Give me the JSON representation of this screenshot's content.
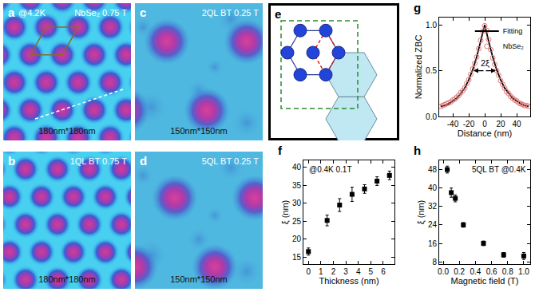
{
  "images": [
    {
      "letter": "a",
      "temperature": "@4.2K",
      "label": "NbSe₂ 0.75 T",
      "size": "180nm*180nm"
    },
    {
      "letter": "b",
      "label": "1QL BT 0.75 T",
      "size": "180nm*180nm"
    },
    {
      "letter": "c",
      "label": "2QL BT 0.25 T",
      "size": "150nm*150nm"
    },
    {
      "letter": "d",
      "label": "5QL BT 0.25 T",
      "size": "150nm*150nm"
    }
  ],
  "schematic": {
    "letter": "e"
  },
  "chart_data": [
    {
      "letter": "f",
      "type": "scatter",
      "annotation": "@0.4K 0.1T",
      "xlabel": "Thickness (nm)",
      "ylabel": "ξ (nm)",
      "x": [
        0,
        1.5,
        2.5,
        3.5,
        4.5,
        5.5,
        6.5
      ],
      "values": [
        16.5,
        25.2,
        29.5,
        32.5,
        34,
        36.2,
        37.8
      ],
      "errors": [
        1,
        1.5,
        1.8,
        2,
        1.2,
        1.2,
        1.2
      ],
      "color": "#000000",
      "marker": "square",
      "xlim": [
        -0.4,
        6.9
      ],
      "ylim": [
        13,
        42
      ],
      "xticks": [
        0,
        1,
        2,
        3,
        4,
        5,
        6
      ],
      "yticks": [
        15,
        20,
        25,
        30,
        35,
        40
      ]
    },
    {
      "letter": "g",
      "type": "line",
      "xlabel": "Distance (nm)",
      "ylabel": "Normalized ZBC",
      "legend": "top right",
      "bracket": {
        "x": [
          -14,
          14
        ],
        "y": 0.5,
        "label": "2ξ"
      },
      "series": [
        {
          "name": "Fitting",
          "type": "line",
          "color": "#000000",
          "x": [
            -55,
            -50,
            -45,
            -40,
            -35,
            -30,
            -25,
            -20,
            -15,
            -10,
            -5,
            0,
            5,
            10,
            15,
            20,
            25,
            30,
            35,
            40,
            45,
            50,
            55
          ],
          "values": [
            0.11,
            0.12,
            0.14,
            0.17,
            0.2,
            0.25,
            0.31,
            0.4,
            0.51,
            0.65,
            0.82,
            1.0,
            0.82,
            0.65,
            0.51,
            0.4,
            0.31,
            0.25,
            0.2,
            0.17,
            0.14,
            0.12,
            0.11
          ]
        },
        {
          "name": "NbSe₂",
          "type": "scatter",
          "marker": "open circle",
          "color": "#e07a7a",
          "x": [
            -55,
            -52.5,
            -50,
            -47.5,
            -45,
            -42.5,
            -40,
            -37.5,
            -35,
            -32.5,
            -30,
            -27.5,
            -25,
            -22.5,
            -20,
            -17.5,
            -15,
            -12.5,
            -10,
            -7.5,
            -5,
            -2.5,
            0,
            2.5,
            5,
            7.5,
            10,
            12.5,
            15,
            17.5,
            20,
            22.5,
            25,
            27.5,
            30,
            32.5,
            35,
            37.5,
            40,
            42.5,
            45,
            47.5,
            50,
            52.5,
            55
          ],
          "values": [
            0.11,
            0.12,
            0.13,
            0.14,
            0.15,
            0.16,
            0.18,
            0.19,
            0.21,
            0.23,
            0.26,
            0.28,
            0.31,
            0.36,
            0.4,
            0.46,
            0.52,
            0.58,
            0.65,
            0.74,
            0.83,
            0.93,
            0.99,
            0.94,
            0.84,
            0.73,
            0.64,
            0.57,
            0.5,
            0.45,
            0.39,
            0.35,
            0.31,
            0.27,
            0.25,
            0.22,
            0.2,
            0.18,
            0.17,
            0.15,
            0.14,
            0.13,
            0.12,
            0.12,
            0.11
          ]
        }
      ],
      "xlim": [
        -57,
        57
      ],
      "ylim": [
        0,
        1.08
      ],
      "xticks": [
        -40,
        -20,
        0,
        20,
        40
      ],
      "yticks": [
        {
          "value": 0,
          "label": "0.0"
        },
        {
          "value": 0.5,
          "label": "0.5"
        },
        {
          "value": 1,
          "label": "1.0"
        }
      ]
    },
    {
      "letter": "h",
      "type": "scatter",
      "annotation": "5QL BT @0.4K",
      "xlabel": "Magnetic field (T)",
      "ylabel": "ξ (nm)",
      "x": [
        0.05,
        0.1,
        0.15,
        0.25,
        0.5,
        0.75,
        1.0
      ],
      "values": [
        48,
        38,
        35.5,
        24,
        16,
        11,
        10.5
      ],
      "errors": [
        1.5,
        2,
        1.5,
        1,
        1,
        1,
        1.5
      ],
      "color": "#000000",
      "marker": "square",
      "xlim": [
        -0.05,
        1.08
      ],
      "ylim": [
        7,
        52
      ],
      "xticks": [
        {
          "value": 0,
          "label": "0.0"
        },
        {
          "value": 0.2,
          "label": "0.2"
        },
        {
          "value": 0.4,
          "label": "0.4"
        },
        {
          "value": 0.6,
          "label": "0.6"
        },
        {
          "value": 0.8,
          "label": "0.8"
        },
        {
          "value": 1,
          "label": "1.0"
        }
      ],
      "yticks": [
        8,
        16,
        24,
        32,
        40,
        48
      ]
    }
  ]
}
